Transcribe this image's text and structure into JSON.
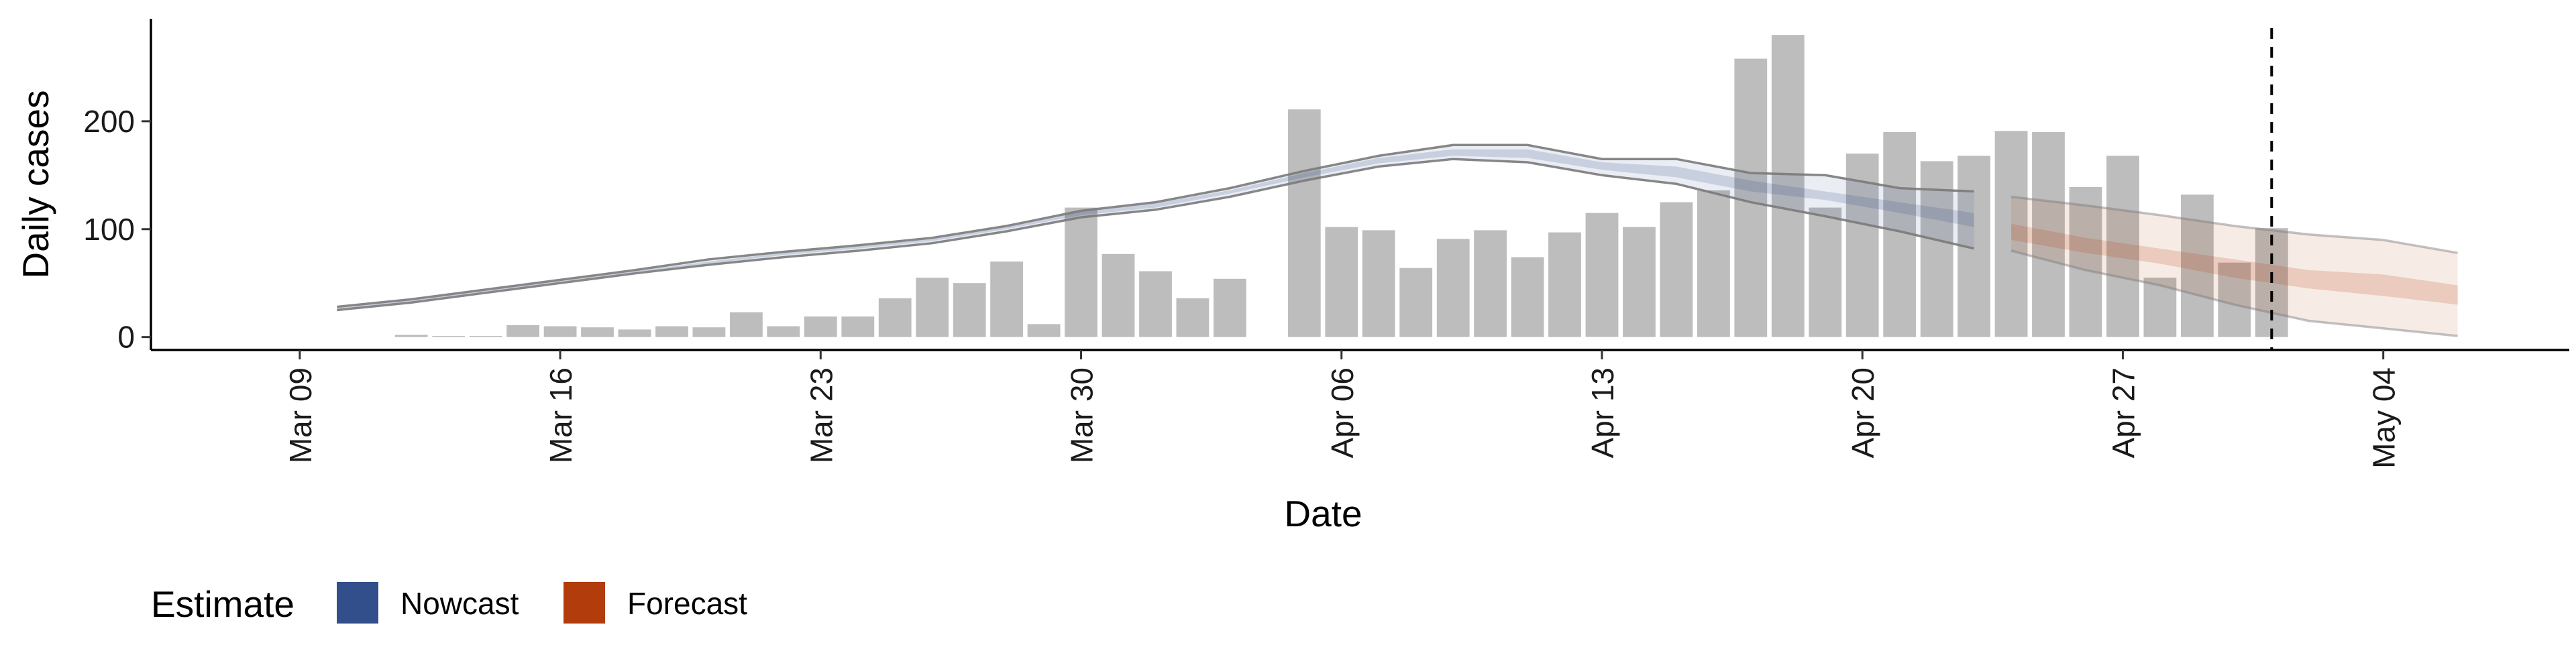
{
  "chart_data": {
    "type": "bar",
    "xlabel": "Date",
    "ylabel": "Daily cases",
    "xlim": [
      "2020-03-05",
      "2020-05-09"
    ],
    "ylim": [
      -12,
      295
    ],
    "x_ticks": [
      "Mar 09",
      "Mar 16",
      "Mar 23",
      "Mar 30",
      "Apr 06",
      "Apr 13",
      "Apr 20",
      "Apr 27",
      "May 04"
    ],
    "x_tick_dates": [
      "2020-03-09",
      "2020-03-16",
      "2020-03-23",
      "2020-03-30",
      "2020-04-06",
      "2020-04-13",
      "2020-04-20",
      "2020-04-27",
      "2020-05-04"
    ],
    "y_ticks": [
      "0",
      "100",
      "200"
    ],
    "y_tick_values": [
      0,
      100,
      200
    ],
    "colors": {
      "bars": "#bdbdbd",
      "nowcast": "#324f8b",
      "forecast": "#b23c0c",
      "outline": "#7a7a7a",
      "vline": "#000000"
    },
    "bars": {
      "dates": [
        "2020-03-12",
        "2020-03-13",
        "2020-03-14",
        "2020-03-15",
        "2020-03-16",
        "2020-03-17",
        "2020-03-18",
        "2020-03-19",
        "2020-03-20",
        "2020-03-21",
        "2020-03-22",
        "2020-03-23",
        "2020-03-24",
        "2020-03-25",
        "2020-03-26",
        "2020-03-27",
        "2020-03-28",
        "2020-03-29",
        "2020-03-30",
        "2020-03-31",
        "2020-04-01",
        "2020-04-02",
        "2020-04-03",
        "2020-04-05",
        "2020-04-06",
        "2020-04-07",
        "2020-04-08",
        "2020-04-09",
        "2020-04-10",
        "2020-04-11",
        "2020-04-12",
        "2020-04-13",
        "2020-04-14",
        "2020-04-15",
        "2020-04-16",
        "2020-04-17",
        "2020-04-18",
        "2020-04-19",
        "2020-04-20",
        "2020-04-21",
        "2020-04-22",
        "2020-04-23",
        "2020-04-24",
        "2020-04-25",
        "2020-04-26",
        "2020-04-27",
        "2020-04-28",
        "2020-04-29",
        "2020-04-30",
        "2020-05-01"
      ],
      "values": [
        2,
        1,
        1,
        11,
        10,
        9,
        7,
        10,
        9,
        23,
        10,
        19,
        19,
        36,
        55,
        50,
        70,
        12,
        120,
        77,
        61,
        36,
        54,
        211,
        102,
        99,
        64,
        91,
        99,
        74,
        97,
        115,
        102,
        125,
        136,
        258,
        280,
        120,
        170,
        190,
        163,
        168,
        191,
        190,
        139,
        168,
        55,
        132,
        69,
        101
      ]
    },
    "nowcast": {
      "dates": [
        "2020-03-10",
        "2020-03-12",
        "2020-03-14",
        "2020-03-16",
        "2020-03-18",
        "2020-03-20",
        "2020-03-22",
        "2020-03-24",
        "2020-03-26",
        "2020-03-28",
        "2020-03-30",
        "2020-04-01",
        "2020-04-03",
        "2020-04-05",
        "2020-04-07",
        "2020-04-09",
        "2020-04-11",
        "2020-04-13",
        "2020-04-15",
        "2020-04-17",
        "2020-04-19",
        "2020-04-21",
        "2020-04-23"
      ],
      "outer_low": [
        25,
        32,
        41,
        50,
        59,
        67,
        74,
        80,
        87,
        98,
        111,
        118,
        130,
        145,
        158,
        165,
        162,
        150,
        142,
        125,
        112,
        98,
        82
      ],
      "inner_low": [
        26,
        33,
        42,
        51,
        60,
        68,
        76,
        82,
        89,
        100,
        113,
        120,
        133,
        148,
        161,
        168,
        166,
        155,
        148,
        135,
        127,
        115,
        102
      ],
      "inner_high": [
        27,
        34,
        43,
        52,
        61,
        70,
        78,
        84,
        91,
        102,
        116,
        124,
        136,
        152,
        166,
        174,
        174,
        162,
        158,
        145,
        135,
        125,
        115
      ],
      "outer_high": [
        28,
        35,
        44,
        53,
        62,
        72,
        79,
        85,
        92,
        103,
        117,
        125,
        138,
        154,
        168,
        178,
        178,
        165,
        165,
        152,
        150,
        138,
        135
      ]
    },
    "forecast": {
      "dates": [
        "2020-04-24",
        "2020-04-26",
        "2020-04-28",
        "2020-04-30",
        "2020-05-02",
        "2020-05-04",
        "2020-05-06"
      ],
      "outer_low": [
        80,
        62,
        48,
        30,
        15,
        8,
        1
      ],
      "inner_low": [
        90,
        78,
        68,
        55,
        45,
        38,
        30
      ],
      "inner_high": [
        105,
        92,
        82,
        72,
        62,
        58,
        48
      ],
      "outer_high": [
        130,
        122,
        113,
        103,
        95,
        90,
        78
      ]
    },
    "vline_date": "2020-05-01",
    "legend": {
      "title": "Estimate",
      "position": "bottom",
      "items": [
        {
          "label": "Nowcast",
          "color": "#324f8b"
        },
        {
          "label": "Forecast",
          "color": "#b23c0c"
        }
      ]
    },
    "grid": false
  }
}
